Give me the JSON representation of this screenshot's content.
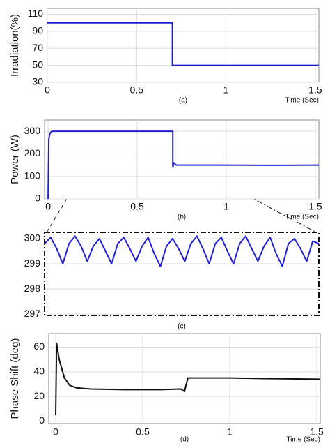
{
  "chart_data": [
    {
      "type": "line",
      "ylabel": "Irradiation(%)",
      "xlabel": "Time (Sec)",
      "caption": "(a)",
      "x": [
        0,
        0.7,
        0.7,
        1.52
      ],
      "values": [
        100,
        100,
        50,
        50
      ],
      "color": "#1f1fd8",
      "xlim": [
        0,
        1.52
      ],
      "ylim": [
        30,
        117
      ],
      "xticks": [
        0,
        0.5,
        1,
        1.5
      ],
      "yticks": [
        30,
        50,
        70,
        90,
        110
      ],
      "grid": true
    },
    {
      "type": "line",
      "ylabel": "Power (W)",
      "xlabel": "Time (Sec)",
      "caption": "(b)",
      "x": [
        0,
        0.004,
        0.01,
        0.02,
        0.7,
        0.7,
        0.705,
        0.72,
        1.0,
        1.3,
        1.52
      ],
      "values": [
        0,
        265,
        290,
        300,
        300,
        140,
        160,
        150,
        150,
        149,
        150
      ],
      "color": "#1f1fd8",
      "xlim": [
        -0.02,
        1.52
      ],
      "ylim": [
        0,
        350
      ],
      "xticks": [
        0,
        0.5,
        1,
        1.5
      ],
      "yticks": [
        0,
        100,
        200,
        300
      ],
      "grid": true
    },
    {
      "type": "line",
      "caption": "(c)",
      "values": [
        299.8,
        300.05,
        299.6,
        299.0,
        299.8,
        300.1,
        299.7,
        299.1,
        299.7,
        300.0,
        299.5,
        299.0,
        299.8,
        300.05,
        299.6,
        299.1,
        299.7,
        300.05,
        299.4,
        298.9,
        299.7,
        300.0,
        299.6,
        299.1,
        299.8,
        300.1,
        299.6,
        299.0,
        299.8,
        300.05,
        299.5,
        299.0,
        299.8,
        300.1,
        299.6,
        299.1,
        299.7,
        300.05,
        299.4,
        298.9,
        299.8,
        300.0,
        299.6,
        299.1,
        299.9,
        299.8
      ],
      "color": "#1f1fd8",
      "ylim": [
        296.95,
        300.25
      ],
      "yticks": [
        297,
        298,
        299,
        300
      ],
      "grid": true
    },
    {
      "type": "line",
      "ylabel": "Phase Shift (deg)",
      "xlabel": "Time (Sec)",
      "caption": "(d)",
      "x": [
        0,
        0.005,
        0.02,
        0.05,
        0.08,
        0.12,
        0.2,
        0.4,
        0.6,
        0.72,
        0.74,
        0.75,
        0.76,
        0.8,
        1.0,
        1.2,
        1.52
      ],
      "values": [
        5,
        63,
        50,
        35,
        29,
        27,
        26,
        25.5,
        25.5,
        26,
        24,
        30,
        35,
        35,
        35,
        34.5,
        34
      ],
      "color": "#111111",
      "xlim": [
        -0.04,
        1.52
      ],
      "ylim": [
        -2,
        71
      ],
      "xticks": [
        0,
        0.5,
        1,
        1.5
      ],
      "yticks": [
        0,
        20,
        40,
        60
      ],
      "grid": true
    }
  ]
}
